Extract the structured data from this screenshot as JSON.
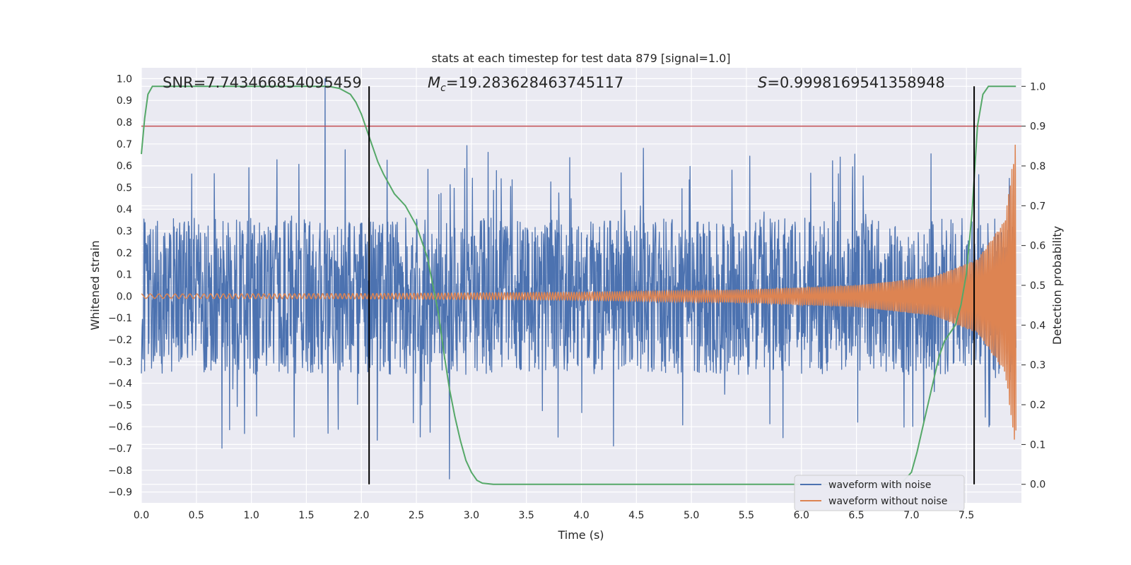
{
  "chart_data": {
    "type": "line",
    "title": "stats at each timestep for test data 879 [signal=1.0]",
    "xlabel": "Time (s)",
    "ylabel": "Whitened strain",
    "y2label": "Detection probability",
    "xlim": [
      0.0,
      8.0
    ],
    "ylim": [
      -0.95,
      1.05
    ],
    "y2lim": [
      -0.0466,
      1.0466
    ],
    "grid": true,
    "xticks": [
      0.0,
      0.5,
      1.0,
      1.5,
      2.0,
      2.5,
      3.0,
      3.5,
      4.0,
      4.5,
      5.0,
      5.5,
      6.0,
      6.5,
      7.0,
      7.5
    ],
    "yticks": [
      1.0,
      0.9,
      0.8,
      0.7,
      0.6,
      0.5,
      0.4,
      0.3,
      0.2,
      0.1,
      0.0,
      -0.1,
      -0.2,
      -0.3,
      -0.4,
      -0.5,
      -0.6,
      -0.7,
      -0.8,
      -0.9
    ],
    "y2ticks": [
      1.0,
      0.9,
      0.8,
      0.7,
      0.6,
      0.5,
      0.4,
      0.3,
      0.2,
      0.1,
      0.0
    ],
    "annotations": {
      "snr": "SNR=7.743466854095459",
      "mc_symbol": "M",
      "mc_sub": "c",
      "mc_value": "=19.283628463745117",
      "s_symbol": "S",
      "s_value": "=0.9998169541358948"
    },
    "legend": {
      "position": "lower right",
      "entries": [
        "waveform with noise",
        "waveform without noise"
      ]
    },
    "series": [
      {
        "name": "waveform with noise",
        "axis": "left",
        "color": "#4c72b0",
        "description": "dense noisy whitened strain, mostly within -0.5..0.5 with spikes up to 1.0 near t=1.67 and down to -0.84 near t=2.8",
        "envelope": {
          "typical_max": 0.45,
          "typical_min": -0.45,
          "peak": 1.0,
          "trough": -0.84,
          "peak_t": 1.67,
          "trough_t": 2.8
        }
      },
      {
        "name": "waveform without noise",
        "axis": "left",
        "color": "#dd8452",
        "description": "chirp signal: amplitude grows slowly from ~0.01, reaching ~0.72 at t=8.0",
        "amplitude_points": [
          [
            0.0,
            0.01
          ],
          [
            2.0,
            0.012
          ],
          [
            4.0,
            0.018
          ],
          [
            5.5,
            0.03
          ],
          [
            6.5,
            0.05
          ],
          [
            7.2,
            0.09
          ],
          [
            7.6,
            0.17
          ],
          [
            7.85,
            0.35
          ],
          [
            7.95,
            0.72
          ]
        ]
      },
      {
        "name": "detection probability",
        "axis": "right",
        "color": "#55a868",
        "x": [
          0.0,
          0.03,
          0.06,
          0.1,
          0.2,
          0.5,
          1.0,
          1.5,
          1.7,
          1.8,
          1.9,
          1.95,
          2.0,
          2.05,
          2.1,
          2.15,
          2.2,
          2.3,
          2.4,
          2.5,
          2.6,
          2.65,
          2.7,
          2.75,
          2.8,
          2.85,
          2.9,
          2.95,
          3.0,
          3.05,
          3.1,
          3.2,
          3.5,
          4.0,
          5.0,
          6.0,
          6.5,
          6.9,
          7.0,
          7.05,
          7.1,
          7.15,
          7.2,
          7.25,
          7.3,
          7.4,
          7.45,
          7.5,
          7.55,
          7.6,
          7.65,
          7.7,
          7.8,
          7.9,
          7.95
        ],
        "values": [
          0.83,
          0.92,
          0.98,
          1.0,
          1.0,
          1.0,
          1.0,
          1.0,
          1.0,
          0.995,
          0.98,
          0.96,
          0.93,
          0.89,
          0.85,
          0.81,
          0.78,
          0.73,
          0.7,
          0.65,
          0.57,
          0.5,
          0.43,
          0.33,
          0.24,
          0.17,
          0.11,
          0.06,
          0.03,
          0.01,
          0.003,
          0.0,
          0.0,
          0.0,
          0.0,
          0.0,
          0.0,
          0.0,
          0.03,
          0.08,
          0.14,
          0.2,
          0.26,
          0.32,
          0.36,
          0.4,
          0.45,
          0.53,
          0.68,
          0.9,
          0.98,
          1.0,
          1.0,
          1.0,
          1.0
        ]
      }
    ],
    "threshold": {
      "axis": "right",
      "value": 0.9,
      "color": "#c44e52"
    },
    "vlines": [
      {
        "x": 2.07,
        "color": "#000000",
        "range": [
          0.0,
          1.0
        ]
      },
      {
        "x": 7.57,
        "color": "#000000",
        "range": [
          0.0,
          1.0
        ]
      }
    ]
  }
}
